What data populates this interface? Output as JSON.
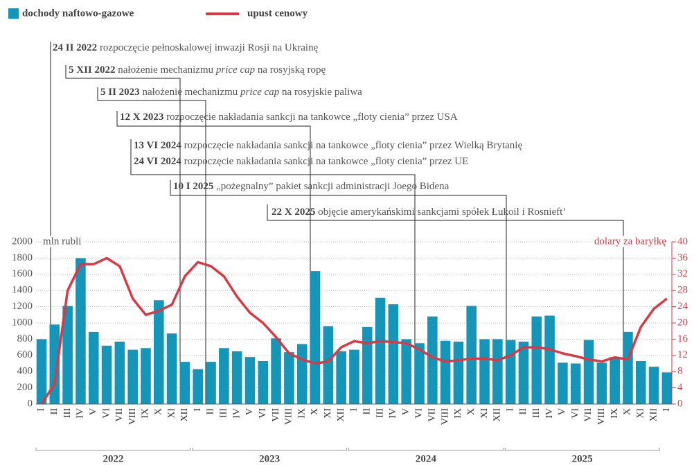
{
  "chart_data": {
    "type": "bar-line",
    "legend": [
      "dochody naftowo-gazowe",
      "upust cenowy"
    ],
    "ylabel": "mln rubli",
    "y2label": "dolary za baryłkę",
    "categories": [
      "I",
      "II",
      "III",
      "IV",
      "V",
      "VI",
      "VII",
      "VIII",
      "IX",
      "X",
      "XI",
      "XII",
      "I",
      "II",
      "III",
      "IV",
      "V",
      "VI",
      "VII",
      "VIII",
      "IX",
      "X",
      "XI",
      "XII",
      "I",
      "II",
      "III",
      "IV",
      "V",
      "VI",
      "VII",
      "VIII",
      "IX",
      "X",
      "XI",
      "XII",
      "I",
      "II",
      "III",
      "IV",
      "V",
      "VI",
      "VII",
      "VIII",
      "IX",
      "X",
      "XI",
      "XII",
      "I"
    ],
    "years": [
      "2022",
      "2023",
      "2024",
      "2025"
    ],
    "series": [
      {
        "name": "dochody naftowo-gazowe",
        "color": "#1596b8",
        "type": "bar",
        "values": [
          800,
          980,
          1210,
          1800,
          890,
          720,
          770,
          670,
          690,
          1280,
          870,
          520,
          430,
          520,
          690,
          650,
          580,
          530,
          810,
          640,
          740,
          1640,
          960,
          650,
          670,
          950,
          1310,
          1230,
          800,
          750,
          1080,
          780,
          770,
          1210,
          800,
          800,
          790,
          770,
          1080,
          1090,
          510,
          500,
          790,
          510,
          580,
          890,
          530,
          460,
          390
        ]
      },
      {
        "name": "upust cenowy",
        "color": "#d63a45",
        "type": "line",
        "axis": "y2",
        "values": [
          0,
          5,
          28,
          34.5,
          34.5,
          36,
          34,
          26,
          22,
          23,
          24.5,
          31.5,
          35,
          34,
          31.5,
          26.5,
          22.5,
          20,
          16.5,
          12.5,
          11,
          10,
          10.5,
          14,
          15.5,
          15,
          15.5,
          15.3,
          15,
          13.5,
          11.5,
          10.5,
          10.8,
          11.2,
          11.2,
          10.8,
          12,
          14,
          14,
          13.5,
          12.5,
          11.8,
          11,
          10.5,
          11.5,
          11,
          19,
          23.5,
          26
        ]
      }
    ],
    "ylim": [
      0,
      2000
    ],
    "yticks": [
      0,
      200,
      400,
      600,
      800,
      1000,
      1200,
      1400,
      1600,
      1800,
      2000
    ],
    "y2lim": [
      0,
      40
    ],
    "y2ticks": [
      0,
      4,
      8,
      12,
      16,
      20,
      24,
      28,
      32,
      36,
      40
    ],
    "grid": true,
    "annotations": [
      {
        "date": "24 II 2022",
        "text": " rozpoczęcie pełnoskalowej inwazji Rosji na Ukrainę"
      },
      {
        "date": "5 XII 2022",
        "text": " nałożenie mechanizmu ",
        "em": "price cap",
        "text2": " na rosyjską ropę"
      },
      {
        "date": "5 II 2023",
        "text": " nałożenie mechanizmu ",
        "em": "price cap",
        "text2": " na rosyjskie paliwa"
      },
      {
        "date": "12 X 2023",
        "text": " rozpoczęcie nakładania sankcji na tankowce „floty cienia” przez USA"
      },
      {
        "date": "13 VI 2024",
        "text": " rozpoczęcie nakładania sankcji na tankowce „floty cienia” przez Wielką Brytanię"
      },
      {
        "date": "24 VI 2024",
        "text": " rozpoczęcie nakładania sankcji na tankowce „floty cienia” przez UE"
      },
      {
        "date": "10 I 2025",
        "text": " „pożegnalny” pakiet sankcji administracji Joego Bidena"
      },
      {
        "date": "22 X 2025",
        "text": " objęcie amerykańskimi sankcjami spółek Łukoil i Rosnieft’"
      }
    ]
  }
}
